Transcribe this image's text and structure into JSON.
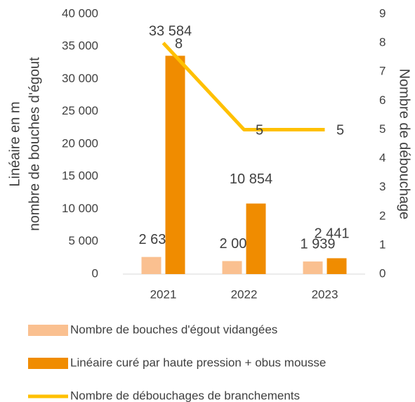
{
  "chart_data": {
    "type": "bar",
    "categories": [
      "2021",
      "2022",
      "2023"
    ],
    "y_label": [
      "Linéaire en m",
      "nombre de bouches d'égout"
    ],
    "y2_label": "Nombre de débouchage",
    "series": [
      {
        "name": "Nombre de bouches d'égout vidangées",
        "type": "bar",
        "color": "#fac090",
        "values": [
          2634,
          2003,
          1939
        ],
        "value_labels": [
          "2 634",
          "2 003",
          "1 939"
        ]
      },
      {
        "name": "Linéaire curé par haute pression + obus mousse",
        "type": "bar",
        "color": "#f08c00",
        "values": [
          33584,
          10854,
          2441
        ],
        "value_labels": [
          "33 584",
          "10 854",
          "2 441"
        ]
      },
      {
        "name": "Nombre de débouchages de branchements",
        "type": "line",
        "axis": "y2",
        "color": "#ffc000",
        "values": [
          8,
          5,
          5
        ]
      }
    ],
    "ylim": [
      0,
      40000
    ],
    "yticks": [
      0,
      {
        "value": 5000,
        "label": "5 000"
      },
      {
        "value": 10000,
        "label": "10 000"
      },
      {
        "value": 15000,
        "label": "15 000"
      },
      {
        "value": 20000,
        "label": "20 000"
      },
      {
        "value": 25000,
        "label": "25 000"
      },
      {
        "value": 30000,
        "label": "30 000"
      },
      {
        "value": 35000,
        "label": "35 000"
      },
      {
        "value": 40000,
        "label": "40 000"
      }
    ],
    "y2lim": [
      0,
      9
    ],
    "y2ticks": [
      0,
      1,
      2,
      3,
      4,
      5,
      6,
      7,
      8,
      9
    ],
    "grid": false,
    "legend": "bottom"
  }
}
